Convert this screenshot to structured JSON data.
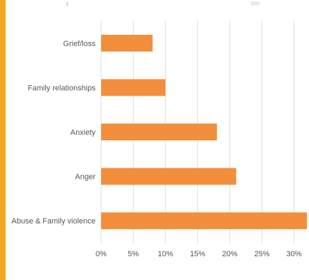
{
  "colors": {
    "accent": "#f5a623",
    "bar": "#f28e3c",
    "grid": "#dcdcdc",
    "text": "#555555"
  },
  "chart_data": {
    "type": "bar",
    "orientation": "horizontal",
    "title": "",
    "xlabel": "",
    "ylabel": "",
    "categories": [
      "Grief/loss",
      "Family relationships",
      "Anxiety",
      "Anger",
      "Abuse & Family violence"
    ],
    "values": [
      8,
      10,
      18,
      21,
      32
    ],
    "xlim": [
      0,
      32
    ],
    "xticks": [
      0,
      5,
      10,
      15,
      20,
      25,
      30
    ],
    "xtick_labels": [
      "0%",
      "5%",
      "10%",
      "15%",
      "20%",
      "25%",
      "30%"
    ],
    "grid": true,
    "legend": "none"
  }
}
